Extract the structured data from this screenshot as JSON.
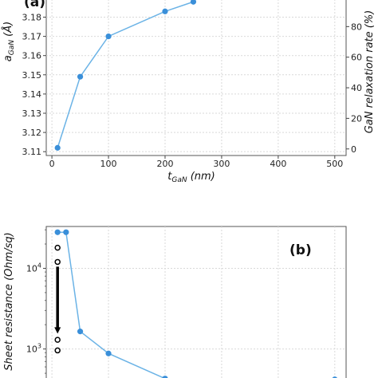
{
  "chart_data": [
    {
      "type": "line",
      "panel_label": "(a)",
      "x": [
        10,
        50,
        100,
        200,
        250
      ],
      "series": [
        {
          "axis": "left",
          "values": [
            3.112,
            3.149,
            3.17,
            3.183,
            3.188
          ],
          "color": "#3a8fd9"
        }
      ],
      "xlabel": {
        "main": "t",
        "sub": "GaN",
        "unit": " (nm)"
      },
      "ylabel": {
        "main": "a",
        "sub": "GaN",
        "unit": " (Å)"
      },
      "y2label": "GaN relaxation rate (%)",
      "xlim": [
        -10,
        520
      ],
      "ylim": [
        3.108,
        3.191
      ],
      "y2lim": [
        -4.3,
        100
      ],
      "xticks": [
        "0",
        "100",
        "200",
        "300",
        "400",
        "500"
      ],
      "yticks": [
        "3.11",
        "3.12",
        "3.13",
        "3.14",
        "3.15",
        "3.16",
        "3.17",
        "3.18"
      ],
      "y2ticks": [
        "0",
        "20",
        "40",
        "60",
        "80"
      ],
      "grid": true
    },
    {
      "type": "line",
      "panel_label": "(b)",
      "yscale": "log",
      "x": [
        10,
        25,
        50,
        100,
        200,
        500
      ],
      "series": [
        {
          "name": "Sheet resistance",
          "values": [
            28000,
            28000,
            1650,
            880,
            430,
            420
          ],
          "color": "#3a8fd9"
        }
      ],
      "open_markers": {
        "x": 10,
        "values": [
          18000,
          12000,
          1300,
          960
        ]
      },
      "arrow": {
        "x": 10,
        "from": 10500,
        "to": 1550
      },
      "ylabel": "Sheet resistance (Ohm/sq)",
      "yticks": [
        {
          "base": "10",
          "exp": "4"
        },
        {
          "base": "10",
          "exp": "3"
        }
      ],
      "xlim": [
        -10,
        520
      ],
      "ylim": [
        390,
        33000
      ],
      "grid": true
    }
  ]
}
